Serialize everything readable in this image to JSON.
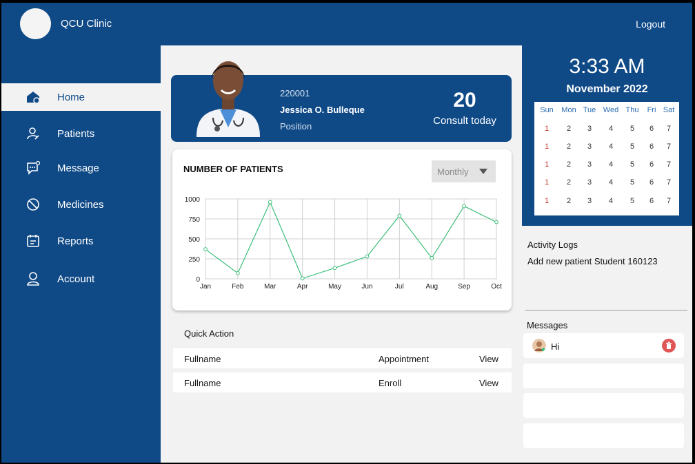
{
  "header": {
    "clinic_name": "QCU Clinic",
    "logout_label": "Logout"
  },
  "sidebar": {
    "items": [
      {
        "label": "Home",
        "icon": "home-icon",
        "active": true
      },
      {
        "label": "Patients",
        "icon": "patient-icon"
      },
      {
        "label": "Message",
        "icon": "message-icon"
      },
      {
        "label": "Medicines",
        "icon": "medicine-icon"
      },
      {
        "label": "Reports",
        "icon": "report-icon"
      },
      {
        "label": "Account",
        "icon": "account-icon"
      }
    ]
  },
  "profile": {
    "id": "220001",
    "name": "Jessica O. Bulleque",
    "position": "Position",
    "consult_count": "20",
    "consult_label": "Consult today"
  },
  "chart_panel": {
    "title": "NUMBER OF PATIENTS",
    "period": "Monthly"
  },
  "chart_data": {
    "type": "line",
    "categories": [
      "Jan",
      "Feb",
      "Mar",
      "Apr",
      "May",
      "Jun",
      "Jul",
      "Aug",
      "Sep",
      "Oct"
    ],
    "series": [
      {
        "values": [
          370,
          70,
          960,
          5,
          135,
          280,
          790,
          260,
          910,
          710
        ],
        "color": "#3bbf7a"
      }
    ],
    "yticks": [
      0,
      250,
      500,
      750,
      1000
    ],
    "ylim": [
      0,
      1000
    ],
    "grid": true
  },
  "quick_action": {
    "title": "Quick Action",
    "rows": [
      {
        "name": "Fullname",
        "type": "Appointment",
        "action": "View"
      },
      {
        "name": "Fullname",
        "type": "Enroll",
        "action": "View"
      }
    ]
  },
  "clock": {
    "time": "3:33 AM",
    "month": "November 2022"
  },
  "calendar": {
    "days": [
      "Sun",
      "Mon",
      "Tue",
      "Wed",
      "Thu",
      "Fri",
      "Sat"
    ],
    "rows": [
      [
        "1",
        "2",
        "3",
        "4",
        "5",
        "6",
        "7"
      ],
      [
        "1",
        "2",
        "3",
        "4",
        "5",
        "6",
        "7"
      ],
      [
        "1",
        "2",
        "3",
        "4",
        "5",
        "6",
        "7"
      ],
      [
        "1",
        "2",
        "3",
        "4",
        "5",
        "6",
        "7"
      ],
      [
        "1",
        "2",
        "3",
        "4",
        "5",
        "6",
        "7"
      ]
    ]
  },
  "activity": {
    "title": "Activity Logs",
    "items": [
      "Add new patient Student 160123"
    ]
  },
  "messages": {
    "title": "Messages",
    "items": [
      {
        "text": "Hi"
      }
    ],
    "empty_slots": 3
  },
  "colors": {
    "primary": "#0f4a87",
    "chart_line": "#3bbf7a",
    "delete": "#e05555"
  }
}
